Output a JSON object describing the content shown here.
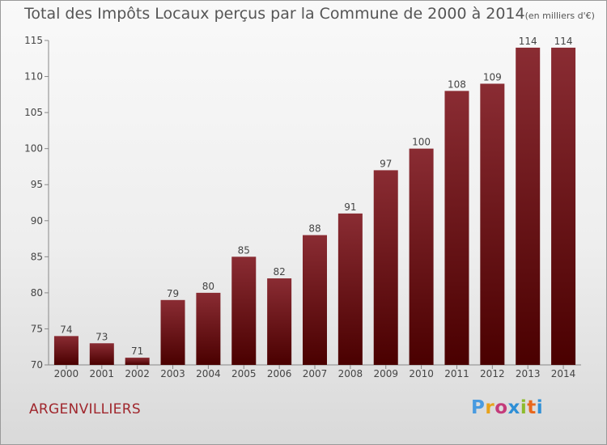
{
  "title": "Total des Impôts Locaux perçus par la Commune de 2000 à 2014",
  "unit": "(en milliers d'€)",
  "commune": "ARGENVILLIERS",
  "logo": {
    "text": "Proxiti",
    "colors": [
      "#4a9be0",
      "#e8a21a",
      "#c43b7a",
      "#2e8fd6",
      "#8dbb2d",
      "#e8671c",
      "#2e8fd6"
    ]
  },
  "chart_data": {
    "type": "bar",
    "categories": [
      "2000",
      "2001",
      "2002",
      "2003",
      "2004",
      "2005",
      "2006",
      "2007",
      "2008",
      "2009",
      "2010",
      "2011",
      "2012",
      "2013",
      "2014"
    ],
    "values": [
      74,
      73,
      71,
      79,
      80,
      85,
      82,
      88,
      91,
      97,
      100,
      108,
      109,
      114,
      114
    ],
    "ylim": [
      70,
      115
    ],
    "yticks": [
      70,
      75,
      80,
      85,
      90,
      95,
      100,
      105,
      110,
      115
    ],
    "bar_color_top": "#8a2c33",
    "bar_color_bottom": "#4a0000",
    "grid": false
  }
}
